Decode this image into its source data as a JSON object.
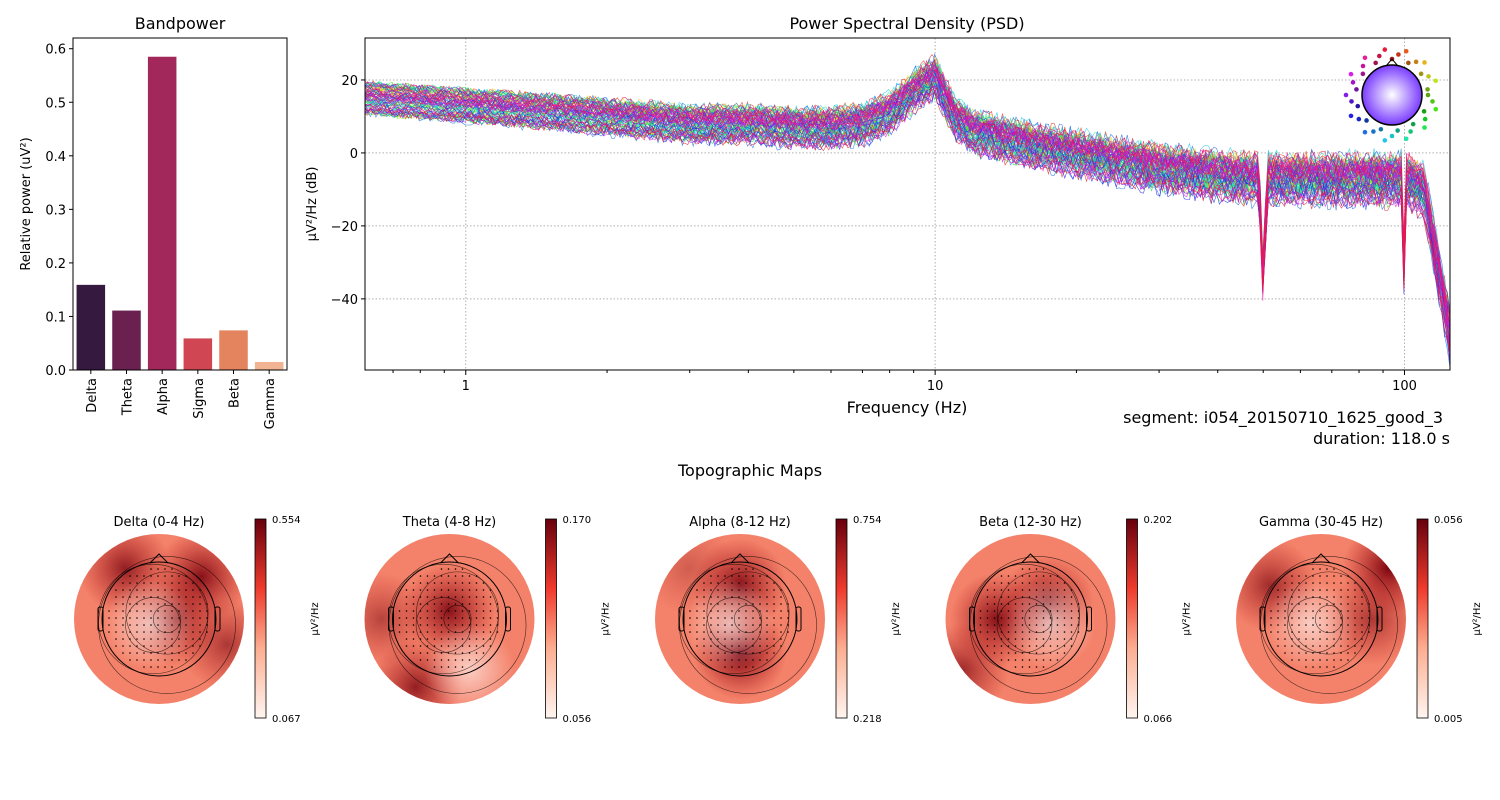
{
  "chart_data": [
    {
      "type": "bar",
      "title": "Bandpower",
      "xlabel": "",
      "ylabel": "Relative power (uV²)",
      "categories": [
        "Delta",
        "Theta",
        "Alpha",
        "Sigma",
        "Beta",
        "Gamma"
      ],
      "values": [
        0.159,
        0.111,
        0.585,
        0.059,
        0.074,
        0.015
      ],
      "colors": [
        "#35193e",
        "#6b2150",
        "#a2285c",
        "#d04652",
        "#e4845f",
        "#f1b391"
      ],
      "ylim": [
        0,
        0.62
      ],
      "yticks": [
        "0.0",
        "0.1",
        "0.2",
        "0.3",
        "0.4",
        "0.5",
        "0.6"
      ]
    },
    {
      "type": "line",
      "title": "Power Spectral Density (PSD)",
      "xlabel": "Frequency (Hz)",
      "ylabel": "µV²/Hz (dB)",
      "xscale": "log",
      "xlim": [
        0.61,
        125
      ],
      "ylim": [
        -59.5,
        31.5
      ],
      "xticks": [
        "1",
        "10",
        "100"
      ],
      "yticks": [
        "20",
        "0",
        "−20",
        "−40"
      ],
      "grid": true,
      "n_channels": 80,
      "mean_curve": {
        "x": [
          0.61,
          1,
          2,
          3,
          4,
          5,
          6,
          7,
          8,
          9,
          10,
          11,
          12,
          15,
          20,
          30,
          40,
          49,
          50,
          51,
          60,
          80,
          99,
          100,
          101,
          110,
          125
        ],
        "y": [
          15,
          13,
          10,
          8,
          8,
          7,
          7,
          8,
          11,
          17,
          21,
          10,
          6,
          3,
          0,
          -4,
          -6,
          -7,
          -36,
          -7,
          -7,
          -7,
          -7,
          -40,
          -7,
          -10,
          -50
        ]
      },
      "spread_db": 4,
      "annotations": [
        "segment: i054_20150710_1625_good_3",
        "duration: 118.0 s"
      ]
    },
    {
      "type": "heatmap",
      "title": "Topographic Maps",
      "colorbar_label": "µV²/Hz",
      "maps": [
        {
          "title": "Delta (0-4 Hz)",
          "vmax": "0.554",
          "vmin": "0.067"
        },
        {
          "title": "Theta (4-8 Hz)",
          "vmax": "0.170",
          "vmin": "0.056"
        },
        {
          "title": "Alpha (8-12 Hz)",
          "vmax": "0.754",
          "vmin": "0.218"
        },
        {
          "title": "Beta (12-30 Hz)",
          "vmax": "0.202",
          "vmin": "0.066"
        },
        {
          "title": "Gamma (30-45 Hz)",
          "vmax": "0.056",
          "vmin": "0.005"
        }
      ]
    }
  ]
}
